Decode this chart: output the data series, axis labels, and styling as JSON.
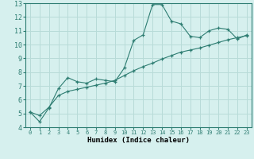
{
  "x": [
    0,
    1,
    2,
    3,
    4,
    5,
    6,
    7,
    8,
    9,
    10,
    11,
    12,
    13,
    14,
    15,
    16,
    17,
    18,
    19,
    20,
    21,
    22,
    23
  ],
  "y_line1": [
    5.1,
    4.4,
    5.4,
    6.8,
    7.6,
    7.3,
    7.2,
    7.5,
    7.4,
    7.3,
    8.3,
    10.3,
    10.7,
    12.9,
    12.9,
    11.7,
    11.5,
    10.6,
    10.5,
    11.0,
    11.2,
    11.1,
    10.4,
    10.7
  ],
  "y_line2": [
    5.1,
    4.85,
    5.45,
    6.3,
    6.6,
    6.75,
    6.9,
    7.05,
    7.2,
    7.4,
    7.75,
    8.1,
    8.4,
    8.65,
    8.95,
    9.2,
    9.45,
    9.6,
    9.75,
    9.95,
    10.15,
    10.35,
    10.5,
    10.65
  ],
  "line_color": "#2e7d72",
  "bg_color": "#d6f0ee",
  "grid_color": "#b8dbd8",
  "xlabel": "Humidex (Indice chaleur)",
  "ylim": [
    4,
    13
  ],
  "xlim": [
    -0.5,
    23.5
  ],
  "yticks": [
    4,
    5,
    6,
    7,
    8,
    9,
    10,
    11,
    12,
    13
  ],
  "xticks": [
    0,
    1,
    2,
    3,
    4,
    5,
    6,
    7,
    8,
    9,
    10,
    11,
    12,
    13,
    14,
    15,
    16,
    17,
    18,
    19,
    20,
    21,
    22,
    23
  ],
  "xlabel_fontsize": 6.5,
  "xtick_fontsize": 5.0,
  "ytick_fontsize": 6.0
}
